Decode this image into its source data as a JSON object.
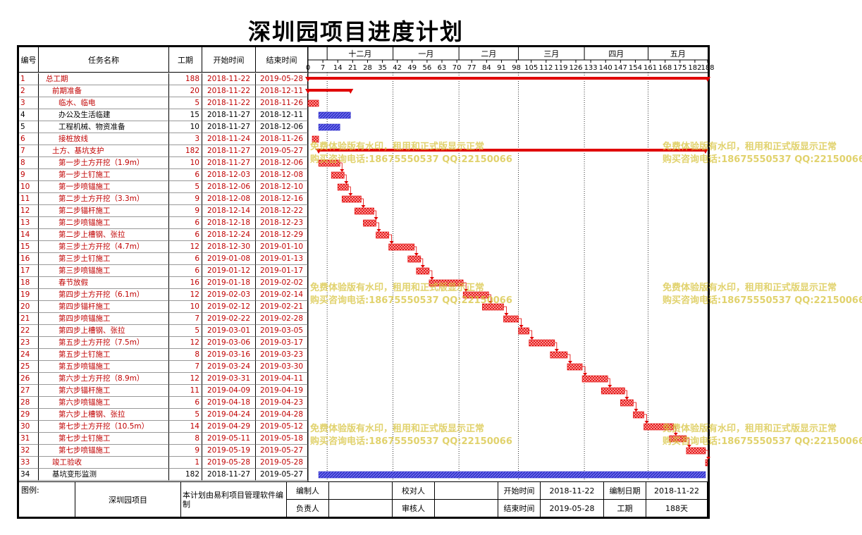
{
  "title": "深圳园项目进度计划",
  "headers": {
    "id": "编号",
    "name": "任务名称",
    "duration": "工期",
    "start": "开始时间",
    "end": "结束时间"
  },
  "months": [
    "十二月",
    "一月",
    "二月",
    "三月",
    "四月",
    "五月"
  ],
  "day_ticks": [
    "0",
    "7",
    "14",
    "21",
    "28",
    "35",
    "42",
    "49",
    "56",
    "63",
    "70",
    "77",
    "84",
    "91",
    "98",
    "105",
    "112",
    "119",
    "126",
    "133",
    "140",
    "147",
    "154",
    "161",
    "168",
    "175",
    "182",
    "188"
  ],
  "tasks": [
    {
      "id": "1",
      "name": "总工期",
      "indent": 1,
      "duration": "188",
      "start": "2018-11-22",
      "end": "2019-05-28",
      "s": 0,
      "d": 188,
      "kind": "summary",
      "critical": true
    },
    {
      "id": "2",
      "name": "前期准备",
      "indent": 2,
      "duration": "20",
      "start": "2018-11-22",
      "end": "2018-12-11",
      "s": 0,
      "d": 20,
      "kind": "summary",
      "critical": true
    },
    {
      "id": "3",
      "name": "临水、临电",
      "indent": 3,
      "duration": "5",
      "start": "2018-11-22",
      "end": "2018-11-26",
      "s": 0,
      "d": 5,
      "kind": "task",
      "critical": true
    },
    {
      "id": "4",
      "name": "办公及生活临建",
      "indent": 3,
      "duration": "15",
      "start": "2018-11-27",
      "end": "2018-12-11",
      "s": 5,
      "d": 15,
      "kind": "task",
      "critical": false
    },
    {
      "id": "5",
      "name": "工程机械、物资准备",
      "indent": 3,
      "duration": "10",
      "start": "2018-11-27",
      "end": "2018-12-06",
      "s": 5,
      "d": 10,
      "kind": "task",
      "critical": false
    },
    {
      "id": "6",
      "name": "接桩放线",
      "indent": 3,
      "duration": "3",
      "start": "2018-11-24",
      "end": "2018-11-26",
      "s": 2,
      "d": 3,
      "kind": "task",
      "critical": true
    },
    {
      "id": "7",
      "name": "土方、基坑支护",
      "indent": 2,
      "duration": "182",
      "start": "2018-11-27",
      "end": "2019-05-27",
      "s": 5,
      "d": 182,
      "kind": "summary",
      "critical": true
    },
    {
      "id": "8",
      "name": "第一步土方开挖（1.9m）",
      "indent": 3,
      "duration": "10",
      "start": "2018-11-27",
      "end": "2018-12-06",
      "s": 5,
      "d": 10,
      "kind": "task",
      "critical": true
    },
    {
      "id": "9",
      "name": "第一步土钉施工",
      "indent": 3,
      "duration": "6",
      "start": "2018-12-03",
      "end": "2018-12-08",
      "s": 11,
      "d": 6,
      "kind": "task",
      "critical": true
    },
    {
      "id": "10",
      "name": "第一步喷锚施工",
      "indent": 3,
      "duration": "5",
      "start": "2018-12-06",
      "end": "2018-12-10",
      "s": 14,
      "d": 5,
      "kind": "task",
      "critical": true
    },
    {
      "id": "11",
      "name": "第二步土方开挖（3.3m）",
      "indent": 3,
      "duration": "9",
      "start": "2018-12-08",
      "end": "2018-12-16",
      "s": 16,
      "d": 9,
      "kind": "task",
      "critical": true
    },
    {
      "id": "12",
      "name": "第二步锚杆施工",
      "indent": 3,
      "duration": "9",
      "start": "2018-12-14",
      "end": "2018-12-22",
      "s": 22,
      "d": 9,
      "kind": "task",
      "critical": true
    },
    {
      "id": "13",
      "name": "第二步喷锚施工",
      "indent": 3,
      "duration": "6",
      "start": "2018-12-18",
      "end": "2018-12-23",
      "s": 26,
      "d": 6,
      "kind": "task",
      "critical": true
    },
    {
      "id": "14",
      "name": "第二步上槽钢、张拉",
      "indent": 3,
      "duration": "6",
      "start": "2018-12-24",
      "end": "2018-12-29",
      "s": 32,
      "d": 6,
      "kind": "task",
      "critical": true
    },
    {
      "id": "15",
      "name": "第三步土方开挖（4.7m）",
      "indent": 3,
      "duration": "12",
      "start": "2018-12-30",
      "end": "2019-01-10",
      "s": 38,
      "d": 12,
      "kind": "task",
      "critical": true
    },
    {
      "id": "16",
      "name": "第三步土钉施工",
      "indent": 3,
      "duration": "6",
      "start": "2019-01-08",
      "end": "2019-01-13",
      "s": 47,
      "d": 6,
      "kind": "task",
      "critical": true
    },
    {
      "id": "17",
      "name": "第三步喷锚施工",
      "indent": 3,
      "duration": "6",
      "start": "2019-01-12",
      "end": "2019-01-17",
      "s": 51,
      "d": 6,
      "kind": "task",
      "critical": true
    },
    {
      "id": "18",
      "name": "春节放假",
      "indent": 3,
      "duration": "16",
      "start": "2019-01-18",
      "end": "2019-02-02",
      "s": 57,
      "d": 16,
      "kind": "task",
      "critical": true
    },
    {
      "id": "19",
      "name": "第四步土方开挖（6.1m）",
      "indent": 3,
      "duration": "12",
      "start": "2019-02-03",
      "end": "2019-02-14",
      "s": 73,
      "d": 12,
      "kind": "task",
      "critical": true
    },
    {
      "id": "20",
      "name": "第四步锚杆施工",
      "indent": 3,
      "duration": "10",
      "start": "2019-02-12",
      "end": "2019-02-21",
      "s": 82,
      "d": 10,
      "kind": "task",
      "critical": true
    },
    {
      "id": "21",
      "name": "第四步喷锚施工",
      "indent": 3,
      "duration": "7",
      "start": "2019-02-22",
      "end": "2019-02-28",
      "s": 92,
      "d": 7,
      "kind": "task",
      "critical": true
    },
    {
      "id": "22",
      "name": "第四步上槽钢、张拉",
      "indent": 3,
      "duration": "5",
      "start": "2019-03-01",
      "end": "2019-03-05",
      "s": 99,
      "d": 5,
      "kind": "task",
      "critical": true
    },
    {
      "id": "23",
      "name": "第五步土方开挖（7.5m）",
      "indent": 3,
      "duration": "12",
      "start": "2019-03-06",
      "end": "2019-03-17",
      "s": 104,
      "d": 12,
      "kind": "task",
      "critical": true
    },
    {
      "id": "24",
      "name": "第五步土钉施工",
      "indent": 3,
      "duration": "8",
      "start": "2019-03-16",
      "end": "2019-03-23",
      "s": 114,
      "d": 8,
      "kind": "task",
      "critical": true
    },
    {
      "id": "25",
      "name": "第五步喷锚施工",
      "indent": 3,
      "duration": "7",
      "start": "2019-03-24",
      "end": "2019-03-30",
      "s": 122,
      "d": 7,
      "kind": "task",
      "critical": true
    },
    {
      "id": "26",
      "name": "第六步土方开挖（8.9m）",
      "indent": 3,
      "duration": "12",
      "start": "2019-03-31",
      "end": "2019-04-11",
      "s": 129,
      "d": 12,
      "kind": "task",
      "critical": true
    },
    {
      "id": "27",
      "name": "第六步锚杆施工",
      "indent": 3,
      "duration": "11",
      "start": "2019-04-09",
      "end": "2019-04-19",
      "s": 138,
      "d": 11,
      "kind": "task",
      "critical": true
    },
    {
      "id": "28",
      "name": "第六步喷锚施工",
      "indent": 3,
      "duration": "6",
      "start": "2019-04-18",
      "end": "2019-04-23",
      "s": 147,
      "d": 6,
      "kind": "task",
      "critical": true
    },
    {
      "id": "29",
      "name": "第六步上槽钢、张拉",
      "indent": 3,
      "duration": "5",
      "start": "2019-04-24",
      "end": "2019-04-28",
      "s": 153,
      "d": 5,
      "kind": "task",
      "critical": true
    },
    {
      "id": "30",
      "name": "第七步土方开挖（10.5m）",
      "indent": 3,
      "duration": "14",
      "start": "2019-04-29",
      "end": "2019-05-12",
      "s": 158,
      "d": 14,
      "kind": "task",
      "critical": true
    },
    {
      "id": "31",
      "name": "第七步土钉施工",
      "indent": 3,
      "duration": "8",
      "start": "2019-05-11",
      "end": "2019-05-18",
      "s": 170,
      "d": 8,
      "kind": "task",
      "critical": true
    },
    {
      "id": "32",
      "name": "第七步喷锚施工",
      "indent": 3,
      "duration": "9",
      "start": "2019-05-19",
      "end": "2019-05-27",
      "s": 178,
      "d": 9,
      "kind": "task",
      "critical": true
    },
    {
      "id": "33",
      "name": "竣工验收",
      "indent": 2,
      "duration": "1",
      "start": "2019-05-28",
      "end": "2019-05-28",
      "s": 187,
      "d": 1,
      "kind": "task",
      "critical": true
    },
    {
      "id": "34",
      "name": "基坑变形监测",
      "indent": 2,
      "duration": "182",
      "start": "2018-11-27",
      "end": "2019-05-27",
      "s": 5,
      "d": 182,
      "kind": "task",
      "critical": false
    }
  ],
  "footer": {
    "legend_label": "图例:",
    "project_name": "深圳园项目",
    "software_note": "本计划由易利项目管理软件编制",
    "compiler_label": "编制人",
    "checker_label": "校对人",
    "owner_label": "负责人",
    "reviewer_label": "审核人",
    "start_label": "开始时间",
    "start_value": "2018-11-22",
    "end_label": "结束时间",
    "end_value": "2019-05-28",
    "compile_date_label": "编制日期",
    "compile_date_value": "2018-11-22",
    "duration_label": "工期",
    "duration_value": "188天"
  },
  "watermark": {
    "line1": "免费体验版有水印，租用和正式版显示正常",
    "line2": "购买咨询电话:18675550537 QQ:22150066"
  },
  "colors": {
    "critical": "#e00000",
    "normal": "#3333cc",
    "text_red": "#c00000"
  }
}
